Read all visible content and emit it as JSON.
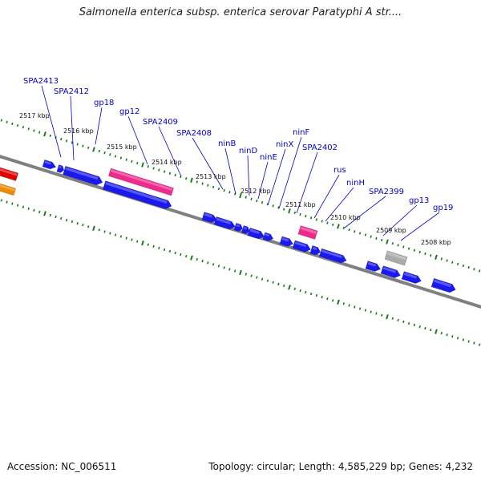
{
  "title": "Salmonella enterica subsp. enterica serovar Paratyphi A str....",
  "footer": {
    "accession": "Accession: NC_006511",
    "stats": "Topology: circular; Length: 4,585,229 bp; Genes: 4,232"
  },
  "colors": {
    "backbone": "#808080",
    "gene_forward": "#1a1aee",
    "gene_other": "#ee2a8c",
    "gene_unknown": "#aaaaaa",
    "off_red": "#e00000",
    "off_orange": "#f08a00",
    "tick": "#1a7a1a",
    "label": "#0000cc"
  },
  "kbp_ticks": [
    "2517 kbp",
    "2516 kbp",
    "2515 kbp",
    "2514 kbp",
    "2513 kbp",
    "2512 kbp",
    "2511 kbp",
    "2510 kbp",
    "2509 kbp",
    "2508 kbp"
  ],
  "gene_labels": [
    "SPA2413",
    "SPA2412",
    "gp18",
    "gp12",
    "SPA2409",
    "SPA2408",
    "ninB",
    "ninD",
    "ninE",
    "ninX",
    "ninF",
    "SPA2402",
    "rus",
    "ninH",
    "SPA2399",
    "gp13",
    "gp19"
  ]
}
